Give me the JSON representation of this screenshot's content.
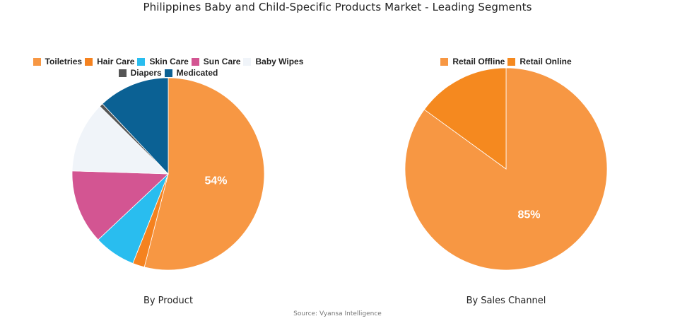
{
  "title": "Philippines Baby and Child-Specific Products Market - Leading Segments",
  "source": "Source: Vyansa Intelligence",
  "chart_data": [
    {
      "type": "pie",
      "subtitle": "By Product",
      "legend_position": "top",
      "start": "top, clockwise",
      "slices": [
        {
          "label": "Toiletries",
          "value": 54,
          "color": "#F79743",
          "data_label": "54%"
        },
        {
          "label": "Hair Care",
          "value": 2,
          "color": "#F5821F",
          "data_label": ""
        },
        {
          "label": "Skin Care",
          "value": 7,
          "color": "#29BDEF",
          "data_label": ""
        },
        {
          "label": "Sun Care",
          "value": 12.5,
          "color": "#D35592",
          "data_label": ""
        },
        {
          "label": "Baby Wipes",
          "value": 11.9,
          "color": "#F0F4F9",
          "data_label": ""
        },
        {
          "label": "Diapers",
          "value": 0.6,
          "color": "#555555",
          "data_label": ""
        },
        {
          "label": "Medicated",
          "value": 12,
          "color": "#0B6194",
          "data_label": ""
        }
      ]
    },
    {
      "type": "pie",
      "subtitle": "By Sales Channel",
      "legend_position": "top",
      "start": "top, clockwise",
      "slices": [
        {
          "label": "Retail Offline",
          "value": 85,
          "color": "#F79743",
          "data_label": "85%"
        },
        {
          "label": "Retail Online",
          "value": 15,
          "color": "#F5891F",
          "data_label": ""
        }
      ]
    }
  ]
}
